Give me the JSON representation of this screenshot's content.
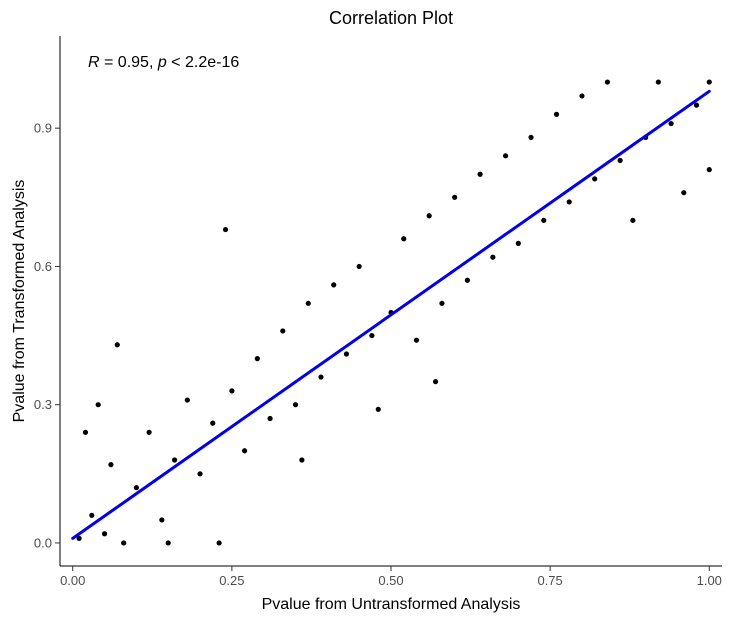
{
  "chart_data": {
    "type": "scatter",
    "title": "Correlation Plot",
    "xlabel": "Pvalue from Untransformed Analysis",
    "ylabel": "Pvalue from Transformed Analysis",
    "xlim": [
      -0.02,
      1.02
    ],
    "ylim": [
      -0.05,
      1.1
    ],
    "x_ticks": [
      0.0,
      0.25,
      0.5,
      0.75,
      1.0
    ],
    "x_tick_labels": [
      "0.00",
      "0.25",
      "0.50",
      "0.75",
      "1.00"
    ],
    "y_ticks": [
      0.0,
      0.3,
      0.6,
      0.9
    ],
    "y_tick_labels": [
      "0.0",
      "0.3",
      "0.6",
      "0.9"
    ],
    "grid": false,
    "annotation": {
      "r_symbol": "R",
      "r_text": " = 0.95, ",
      "p_symbol": "p",
      "p_text": " < 2.2e-16"
    },
    "fit_line": {
      "color": "#0000ee",
      "points": [
        {
          "x": 0.0,
          "y": 0.01
        },
        {
          "x": 1.0,
          "y": 0.98
        }
      ]
    },
    "point_color": "#000000",
    "series": [
      {
        "points": [
          {
            "x": 0.01,
            "y": 0.01
          },
          {
            "x": 0.03,
            "y": 0.06
          },
          {
            "x": 0.05,
            "y": 0.02
          },
          {
            "x": 0.06,
            "y": 0.17
          },
          {
            "x": 0.08,
            "y": 0.0
          },
          {
            "x": 0.1,
            "y": 0.12
          },
          {
            "x": 0.12,
            "y": 0.24
          },
          {
            "x": 0.14,
            "y": 0.05
          },
          {
            "x": 0.16,
            "y": 0.18
          },
          {
            "x": 0.18,
            "y": 0.31
          },
          {
            "x": 0.2,
            "y": 0.15
          },
          {
            "x": 0.22,
            "y": 0.26
          },
          {
            "x": 0.24,
            "y": 0.68
          },
          {
            "x": 0.25,
            "y": 0.33
          },
          {
            "x": 0.27,
            "y": 0.2
          },
          {
            "x": 0.29,
            "y": 0.4
          },
          {
            "x": 0.31,
            "y": 0.27
          },
          {
            "x": 0.33,
            "y": 0.46
          },
          {
            "x": 0.35,
            "y": 0.3
          },
          {
            "x": 0.37,
            "y": 0.52
          },
          {
            "x": 0.39,
            "y": 0.36
          },
          {
            "x": 0.41,
            "y": 0.56
          },
          {
            "x": 0.43,
            "y": 0.41
          },
          {
            "x": 0.45,
            "y": 0.6
          },
          {
            "x": 0.47,
            "y": 0.45
          },
          {
            "x": 0.5,
            "y": 0.5
          },
          {
            "x": 0.52,
            "y": 0.66
          },
          {
            "x": 0.54,
            "y": 0.44
          },
          {
            "x": 0.56,
            "y": 0.71
          },
          {
            "x": 0.58,
            "y": 0.52
          },
          {
            "x": 0.6,
            "y": 0.75
          },
          {
            "x": 0.62,
            "y": 0.57
          },
          {
            "x": 0.64,
            "y": 0.8
          },
          {
            "x": 0.66,
            "y": 0.62
          },
          {
            "x": 0.68,
            "y": 0.84
          },
          {
            "x": 0.7,
            "y": 0.65
          },
          {
            "x": 0.72,
            "y": 0.88
          },
          {
            "x": 0.74,
            "y": 0.7
          },
          {
            "x": 0.76,
            "y": 0.93
          },
          {
            "x": 0.78,
            "y": 0.74
          },
          {
            "x": 0.8,
            "y": 0.97
          },
          {
            "x": 0.82,
            "y": 0.79
          },
          {
            "x": 0.84,
            "y": 1.0
          },
          {
            "x": 0.86,
            "y": 0.83
          },
          {
            "x": 0.88,
            "y": 0.7
          },
          {
            "x": 0.9,
            "y": 0.88
          },
          {
            "x": 0.92,
            "y": 1.0
          },
          {
            "x": 0.94,
            "y": 0.91
          },
          {
            "x": 0.96,
            "y": 0.76
          },
          {
            "x": 0.98,
            "y": 0.95
          },
          {
            "x": 1.0,
            "y": 1.0
          },
          {
            "x": 1.0,
            "y": 0.81
          },
          {
            "x": 0.07,
            "y": 0.43
          },
          {
            "x": 0.02,
            "y": 0.24
          },
          {
            "x": 0.04,
            "y": 0.3
          },
          {
            "x": 0.15,
            "y": 0.0
          },
          {
            "x": 0.23,
            "y": 0.0
          },
          {
            "x": 0.36,
            "y": 0.18
          },
          {
            "x": 0.48,
            "y": 0.29
          },
          {
            "x": 0.57,
            "y": 0.35
          }
        ]
      }
    ]
  }
}
